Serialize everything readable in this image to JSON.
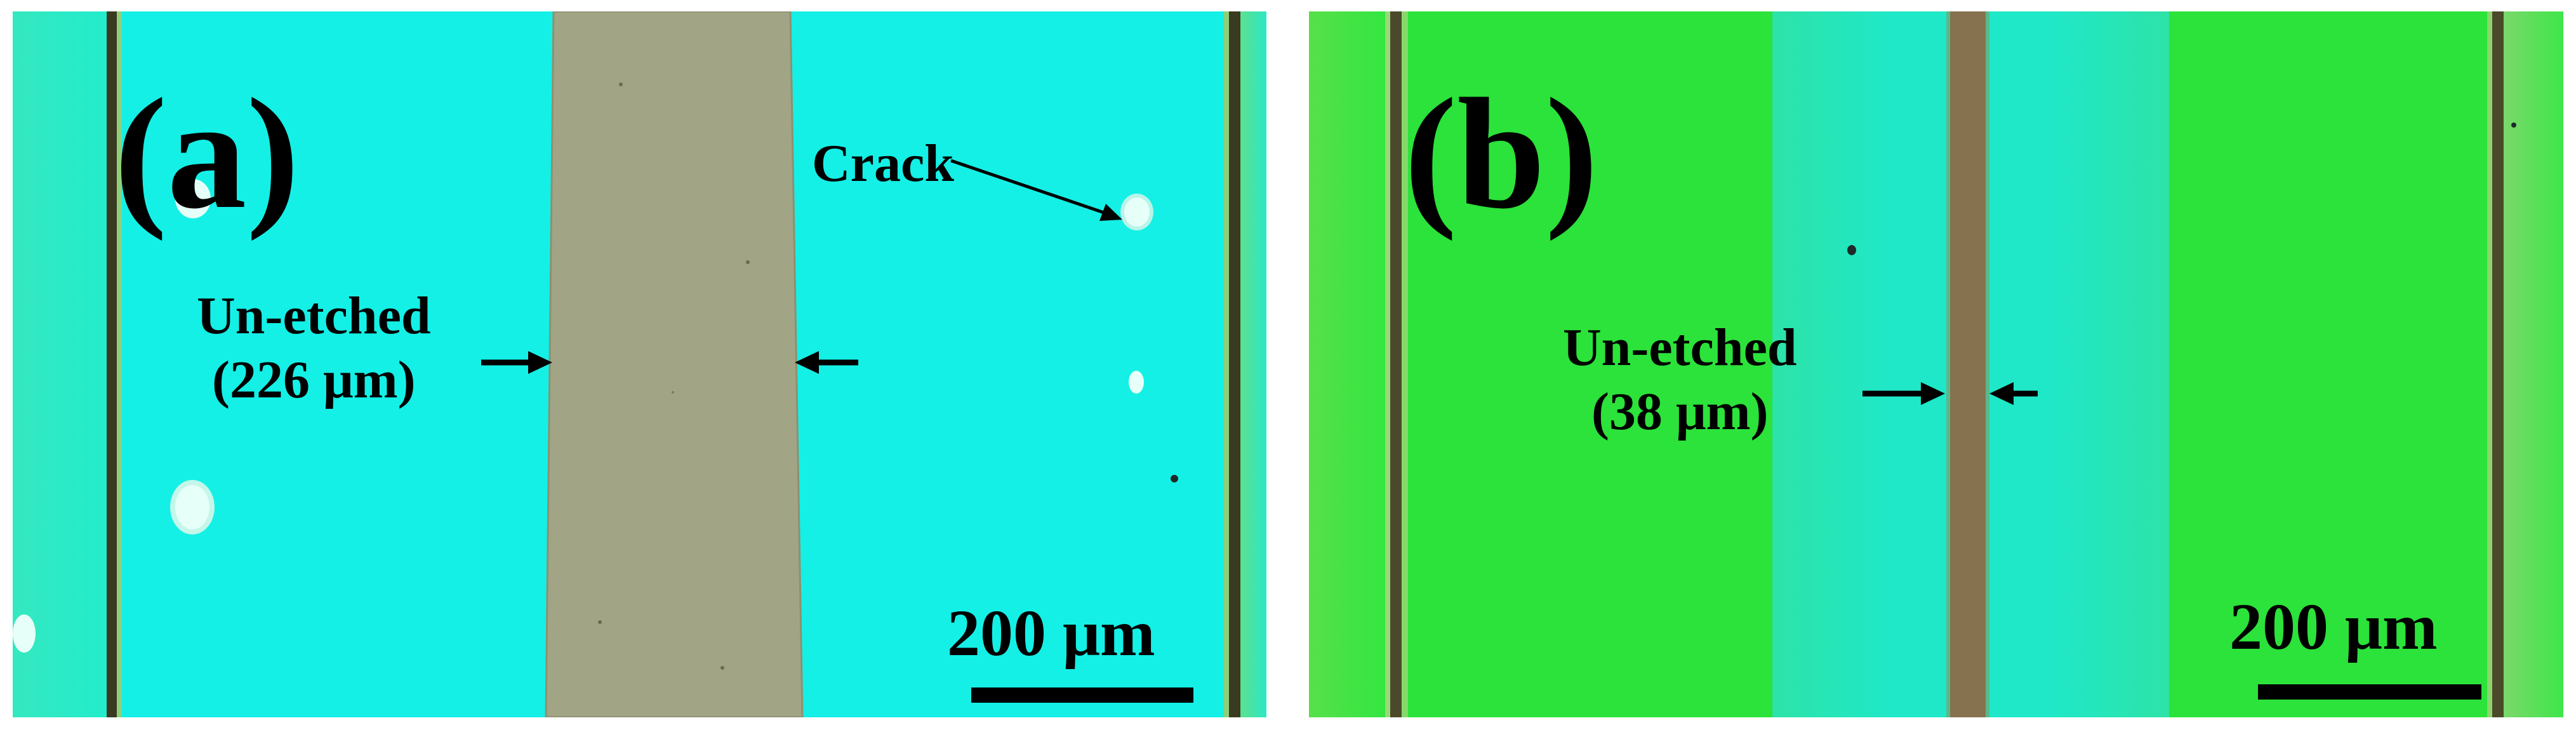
{
  "panels": [
    {
      "id": "a",
      "letter": "(a)",
      "annotations": {
        "unetched": "Un-etched",
        "unetched_width": "(226 μm)",
        "crack": "Crack"
      },
      "scale_bar": "200 μm",
      "colors": {
        "background": "#14f0e6",
        "etched_strip": "#a2a585",
        "edge_line": "#3a3a22"
      }
    },
    {
      "id": "b",
      "letter": "(b)",
      "annotations": {
        "unetched": "Un-etched",
        "unetched_width": "(38 μm)"
      },
      "scale_bar": "200 μm",
      "colors": {
        "background": "#2be33a",
        "cyan_band": "#1fe8c8",
        "etched_strip": "#86724e",
        "edge_line": "#4a4a2a"
      }
    }
  ]
}
